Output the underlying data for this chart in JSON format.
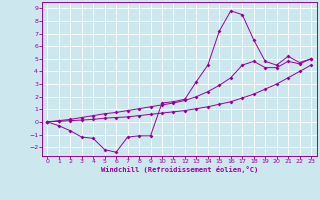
{
  "title": "",
  "xlabel": "Windchill (Refroidissement éolien,°C)",
  "bg_color": "#cce8ee",
  "line_color": "#990099",
  "grid_color": "#ffffff",
  "xlim": [
    -0.5,
    23.5
  ],
  "ylim": [
    -2.7,
    9.5
  ],
  "xticks": [
    0,
    1,
    2,
    3,
    4,
    5,
    6,
    7,
    8,
    9,
    10,
    11,
    12,
    13,
    14,
    15,
    16,
    17,
    18,
    19,
    20,
    21,
    22,
    23
  ],
  "yticks": [
    -2,
    -1,
    0,
    1,
    2,
    3,
    4,
    5,
    6,
    7,
    8,
    9
  ],
  "line1_x": [
    0,
    1,
    2,
    3,
    4,
    5,
    6,
    7,
    8,
    9,
    10,
    11,
    12,
    13,
    14,
    15,
    16,
    17,
    18,
    19,
    20,
    21,
    22,
    23
  ],
  "line1_y": [
    0.0,
    -0.3,
    -0.7,
    -1.2,
    -1.3,
    -2.2,
    -2.4,
    -1.2,
    -1.1,
    -1.1,
    1.5,
    1.6,
    1.8,
    3.2,
    4.5,
    7.2,
    8.8,
    8.5,
    6.5,
    4.8,
    4.5,
    5.2,
    4.7,
    5.0
  ],
  "line2_x": [
    0,
    1,
    2,
    3,
    4,
    5,
    6,
    7,
    8,
    9,
    10,
    11,
    12,
    13,
    14,
    15,
    16,
    17,
    18,
    19,
    20,
    21,
    22,
    23
  ],
  "line2_y": [
    0.0,
    0.05,
    0.1,
    0.15,
    0.2,
    0.3,
    0.35,
    0.4,
    0.5,
    0.6,
    0.7,
    0.8,
    0.9,
    1.05,
    1.2,
    1.4,
    1.6,
    1.9,
    2.2,
    2.6,
    3.0,
    3.5,
    4.0,
    4.5
  ],
  "line3_x": [
    0,
    1,
    2,
    3,
    4,
    5,
    6,
    7,
    8,
    9,
    10,
    11,
    12,
    13,
    14,
    15,
    16,
    17,
    18,
    19,
    20,
    21,
    22,
    23
  ],
  "line3_y": [
    0.0,
    0.1,
    0.2,
    0.35,
    0.5,
    0.65,
    0.75,
    0.9,
    1.05,
    1.2,
    1.35,
    1.5,
    1.7,
    2.0,
    2.4,
    2.9,
    3.5,
    4.5,
    4.8,
    4.3,
    4.3,
    4.8,
    4.6,
    5.0
  ]
}
